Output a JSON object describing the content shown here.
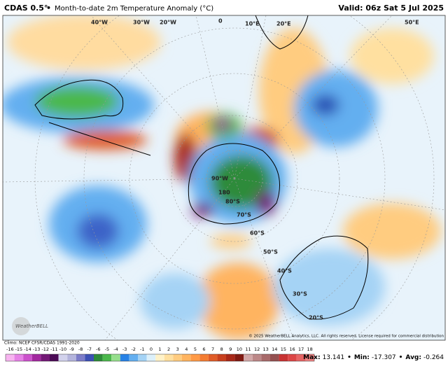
{
  "header": {
    "product": "CDAS 0.5°",
    "separator": "•",
    "title": "Month-to-date 2m Temperature Anomaly (°C)",
    "valid": "Valid: 06z Sat 5 Jul 2025"
  },
  "map": {
    "labels": [
      "40°W",
      "30°W",
      "20°W",
      "0",
      "10°E",
      "20°E",
      "50°E",
      "90°W",
      "180",
      "80°S",
      "70°S",
      "60°S",
      "50°S",
      "40°S",
      "30°S",
      "20°S"
    ],
    "logo": "WeatherBELL"
  },
  "footer": {
    "climo": "Climo: NCEP CFSR/CDAS 1991-2020",
    "copyright": "© 2025 WeatherBELL Analytics, LLC. All rights reserved. License required for commercial distribution",
    "stats": [
      {
        "label": "Max:",
        "value": 13.141
      },
      {
        "label": "Min:",
        "value": -17.307
      },
      {
        "label": "Avg:",
        "value": -0.264
      }
    ],
    "separator": "•"
  },
  "colorbar": {
    "ticks": [
      -16,
      -15,
      -14,
      -13,
      -12,
      -11,
      -10,
      -9,
      -8,
      -7,
      -6,
      -5,
      -4,
      -3,
      -2,
      -1,
      0,
      1,
      2,
      3,
      4,
      5,
      6,
      7,
      8,
      9,
      10,
      11,
      12,
      13,
      14,
      15,
      16,
      17,
      18
    ],
    "colors": [
      "#f7b4f0",
      "#e682e6",
      "#cc52cc",
      "#a3289f",
      "#731876",
      "#4b0a55",
      "#d2d2ec",
      "#b4b4dc",
      "#7c7cc8",
      "#3c50b4",
      "#2e8b3a",
      "#4cb84c",
      "#96de8c",
      "#2882e6",
      "#64aff0",
      "#a5d3f5",
      "#dcf0fa",
      "#fff2c8",
      "#ffe0a0",
      "#ffcc80",
      "#ffb460",
      "#ff9a46",
      "#f47c32",
      "#e05c28",
      "#c8401e",
      "#a82818",
      "#801a12",
      "#d2a8a8",
      "#bc8888",
      "#a86a6a",
      "#945050",
      "#c83232",
      "#dc4646",
      "#e66464",
      "#f08282"
    ]
  }
}
